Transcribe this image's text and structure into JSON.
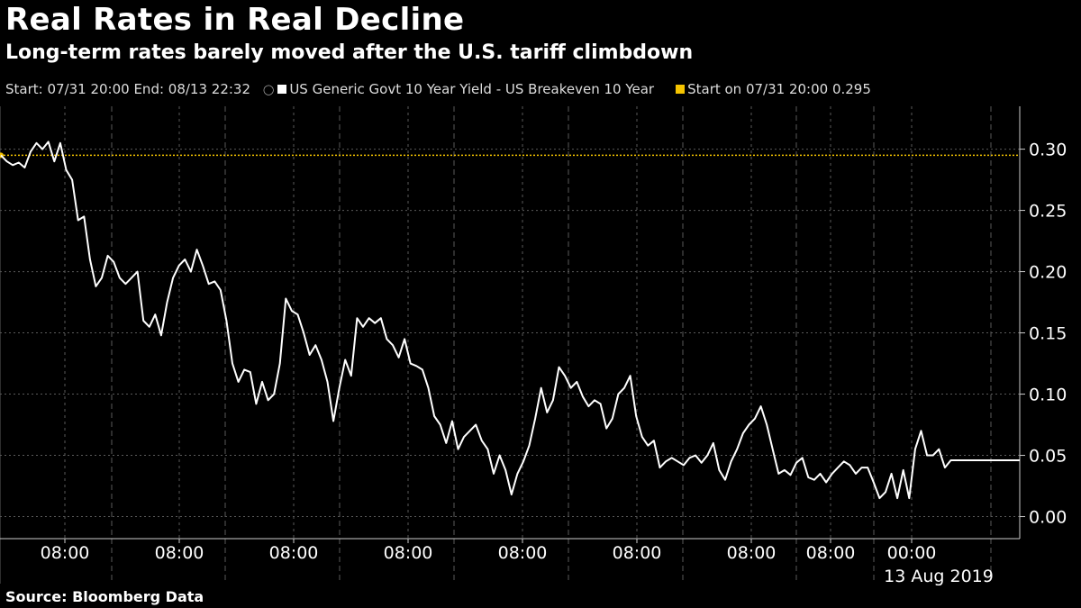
{
  "header": {
    "title": "Real Rates in Real Decline",
    "subtitle": "Long-term rates barely moved after the U.S. tariff climbdown"
  },
  "legend": {
    "range": "Start: 07/31 20:00 End: 08/13 22:32",
    "series_label": "US Generic Govt 10 Year Yield - US Breakeven 10 Year",
    "series_color": "#ffffff",
    "start_label": "Start on 07/31 20:00 0.295",
    "start_color": "#f5c400"
  },
  "footer": {
    "source": "Source: Bloomberg Data"
  },
  "chart_data": {
    "type": "line",
    "title": "Real Rates in Real Decline",
    "ylim": [
      -0.018,
      0.335
    ],
    "yticks": [
      0.0,
      0.05,
      0.1,
      0.15,
      0.2,
      0.25,
      0.3
    ],
    "ytick_labels": [
      "0.00",
      "0.05",
      "0.10",
      "0.15",
      "0.20",
      "0.25",
      "0.30"
    ],
    "xtick_labels": [
      "08:00",
      "08:00",
      "08:00",
      "08:00",
      "08:00",
      "08:00",
      "08:00",
      "08:00",
      "00:00"
    ],
    "xdate_label": "13 Aug 2019",
    "reference_value": 0.295,
    "last_value": 0.046,
    "series": [
      {
        "name": "US Generic Govt 10 Year Yield - US Breakeven 10 Year",
        "values": [
          0.295,
          0.29,
          0.287,
          0.289,
          0.285,
          0.298,
          0.305,
          0.3,
          0.306,
          0.29,
          0.305,
          0.283,
          0.275,
          0.242,
          0.245,
          0.21,
          0.188,
          0.195,
          0.213,
          0.208,
          0.195,
          0.19,
          0.195,
          0.2,
          0.16,
          0.155,
          0.165,
          0.148,
          0.175,
          0.195,
          0.205,
          0.21,
          0.2,
          0.218,
          0.205,
          0.19,
          0.192,
          0.185,
          0.16,
          0.125,
          0.11,
          0.12,
          0.118,
          0.092,
          0.11,
          0.095,
          0.1,
          0.125,
          0.178,
          0.168,
          0.165,
          0.15,
          0.132,
          0.14,
          0.128,
          0.11,
          0.078,
          0.105,
          0.128,
          0.115,
          0.162,
          0.155,
          0.162,
          0.158,
          0.162,
          0.145,
          0.14,
          0.13,
          0.145,
          0.125,
          0.123,
          0.12,
          0.105,
          0.082,
          0.075,
          0.06,
          0.078,
          0.055,
          0.065,
          0.07,
          0.075,
          0.062,
          0.055,
          0.035,
          0.05,
          0.038,
          0.018,
          0.035,
          0.045,
          0.058,
          0.08,
          0.105,
          0.085,
          0.095,
          0.122,
          0.115,
          0.105,
          0.11,
          0.098,
          0.09,
          0.095,
          0.092,
          0.072,
          0.08,
          0.1,
          0.105,
          0.115,
          0.082,
          0.065,
          0.058,
          0.062,
          0.04,
          0.045,
          0.048,
          0.045,
          0.042,
          0.048,
          0.05,
          0.044,
          0.05,
          0.06,
          0.038,
          0.03,
          0.045,
          0.055,
          0.068,
          0.075,
          0.08,
          0.09,
          0.075,
          0.055,
          0.035,
          0.038,
          0.034,
          0.044,
          0.048,
          0.032,
          0.03,
          0.035,
          0.028,
          0.035,
          0.04,
          0.045,
          0.042,
          0.035,
          0.04,
          0.04,
          0.028,
          0.015,
          0.02,
          0.035,
          0.015,
          0.038,
          0.015,
          0.055,
          0.07,
          0.05,
          0.05,
          0.055,
          0.04,
          0.046,
          0.046,
          0.046,
          0.046,
          0.046,
          0.046,
          0.046
        ]
      }
    ]
  }
}
